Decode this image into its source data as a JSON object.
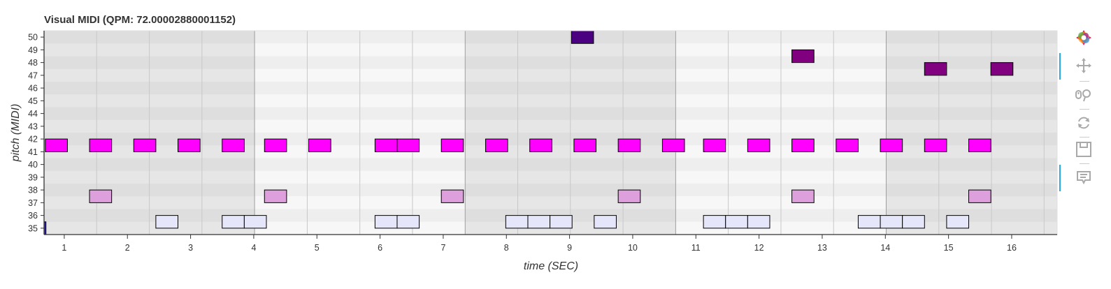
{
  "chart_data": {
    "type": "piano-roll",
    "title": "Visual MIDI (QPM: 72.00002880001152)",
    "xlabel": "time (SEC)",
    "ylabel": "pitch (MIDI)",
    "xlim": [
      0.68,
      16.72
    ],
    "ylim": [
      34.5,
      50.5
    ],
    "x_ticks": [
      1,
      2,
      3,
      4,
      5,
      6,
      7,
      8,
      9,
      10,
      11,
      12,
      13,
      14,
      15,
      16
    ],
    "y_ticks": [
      35,
      36,
      37,
      38,
      39,
      40,
      41,
      42,
      43,
      44,
      45,
      46,
      47,
      48,
      49,
      50
    ],
    "beat_lines": [
      0.68,
      1.513,
      2.347,
      3.18,
      4.013,
      4.847,
      5.68,
      6.513,
      7.347,
      8.18,
      9.013,
      9.847,
      10.68,
      11.513,
      12.347,
      13.18,
      14.013,
      14.847,
      15.68,
      16.513
    ],
    "shaded_bars": [
      [
        0.68,
        4.013
      ],
      [
        7.347,
        10.68
      ],
      [
        14.013,
        16.72
      ]
    ],
    "grid": true,
    "note_height": 1,
    "notes": [
      {
        "start": 0.68,
        "end": 0.71,
        "pitch": 35,
        "color": "#3a2aa0"
      },
      {
        "start": 0.7,
        "end": 1.05,
        "pitch": 41.5,
        "color": "#ff00ff"
      },
      {
        "start": 1.4,
        "end": 1.75,
        "pitch": 41.5,
        "color": "#ff00ff"
      },
      {
        "start": 2.1,
        "end": 2.45,
        "pitch": 41.5,
        "color": "#ff00ff"
      },
      {
        "start": 2.8,
        "end": 3.15,
        "pitch": 41.5,
        "color": "#ff00ff"
      },
      {
        "start": 3.5,
        "end": 3.85,
        "pitch": 41.5,
        "color": "#ff00ff"
      },
      {
        "start": 4.17,
        "end": 4.52,
        "pitch": 41.5,
        "color": "#ff00ff"
      },
      {
        "start": 4.87,
        "end": 5.22,
        "pitch": 41.5,
        "color": "#ff00ff"
      },
      {
        "start": 5.92,
        "end": 6.27,
        "pitch": 41.5,
        "color": "#ff00ff"
      },
      {
        "start": 6.27,
        "end": 6.62,
        "pitch": 41.5,
        "color": "#ff00ff"
      },
      {
        "start": 6.97,
        "end": 7.32,
        "pitch": 41.5,
        "color": "#ff00ff"
      },
      {
        "start": 7.67,
        "end": 8.02,
        "pitch": 41.5,
        "color": "#ff00ff"
      },
      {
        "start": 8.37,
        "end": 8.72,
        "pitch": 41.5,
        "color": "#ff00ff"
      },
      {
        "start": 9.07,
        "end": 9.42,
        "pitch": 41.5,
        "color": "#ff00ff"
      },
      {
        "start": 9.77,
        "end": 10.12,
        "pitch": 41.5,
        "color": "#ff00ff"
      },
      {
        "start": 10.47,
        "end": 10.82,
        "pitch": 41.5,
        "color": "#ff00ff"
      },
      {
        "start": 11.12,
        "end": 11.47,
        "pitch": 41.5,
        "color": "#ff00ff"
      },
      {
        "start": 11.82,
        "end": 12.17,
        "pitch": 41.5,
        "color": "#ff00ff"
      },
      {
        "start": 12.52,
        "end": 12.87,
        "pitch": 41.5,
        "color": "#ff00ff"
      },
      {
        "start": 13.22,
        "end": 13.57,
        "pitch": 41.5,
        "color": "#ff00ff"
      },
      {
        "start": 13.92,
        "end": 14.27,
        "pitch": 41.5,
        "color": "#ff00ff"
      },
      {
        "start": 14.62,
        "end": 14.97,
        "pitch": 41.5,
        "color": "#ff00ff"
      },
      {
        "start": 15.32,
        "end": 15.67,
        "pitch": 41.5,
        "color": "#ff00ff"
      },
      {
        "start": 1.4,
        "end": 1.75,
        "pitch": 37.5,
        "color": "#dda0dd"
      },
      {
        "start": 4.17,
        "end": 4.52,
        "pitch": 37.5,
        "color": "#dda0dd"
      },
      {
        "start": 6.97,
        "end": 7.32,
        "pitch": 37.5,
        "color": "#dda0dd"
      },
      {
        "start": 9.77,
        "end": 10.12,
        "pitch": 37.5,
        "color": "#dda0dd"
      },
      {
        "start": 12.52,
        "end": 12.87,
        "pitch": 37.5,
        "color": "#dda0dd"
      },
      {
        "start": 15.32,
        "end": 15.67,
        "pitch": 37.5,
        "color": "#dda0dd"
      },
      {
        "start": 2.45,
        "end": 2.8,
        "pitch": 35.5,
        "color": "#e6e6fa"
      },
      {
        "start": 3.5,
        "end": 3.85,
        "pitch": 35.5,
        "color": "#e6e6fa"
      },
      {
        "start": 3.85,
        "end": 4.2,
        "pitch": 35.5,
        "color": "#e6e6fa"
      },
      {
        "start": 5.92,
        "end": 6.27,
        "pitch": 35.5,
        "color": "#e6e6fa"
      },
      {
        "start": 6.27,
        "end": 6.62,
        "pitch": 35.5,
        "color": "#e6e6fa"
      },
      {
        "start": 7.99,
        "end": 8.34,
        "pitch": 35.5,
        "color": "#e6e6fa"
      },
      {
        "start": 8.34,
        "end": 8.69,
        "pitch": 35.5,
        "color": "#e6e6fa"
      },
      {
        "start": 8.69,
        "end": 9.04,
        "pitch": 35.5,
        "color": "#e6e6fa"
      },
      {
        "start": 9.39,
        "end": 9.74,
        "pitch": 35.5,
        "color": "#e6e6fa"
      },
      {
        "start": 11.12,
        "end": 11.47,
        "pitch": 35.5,
        "color": "#e6e6fa"
      },
      {
        "start": 11.47,
        "end": 11.82,
        "pitch": 35.5,
        "color": "#e6e6fa"
      },
      {
        "start": 11.82,
        "end": 12.17,
        "pitch": 35.5,
        "color": "#e6e6fa"
      },
      {
        "start": 13.57,
        "end": 13.92,
        "pitch": 35.5,
        "color": "#e6e6fa"
      },
      {
        "start": 13.92,
        "end": 14.27,
        "pitch": 35.5,
        "color": "#e6e6fa"
      },
      {
        "start": 14.27,
        "end": 14.62,
        "pitch": 35.5,
        "color": "#e6e6fa"
      },
      {
        "start": 14.97,
        "end": 15.32,
        "pitch": 35.5,
        "color": "#e6e6fa"
      },
      {
        "start": 12.52,
        "end": 12.87,
        "pitch": 48.5,
        "color": "#800080"
      },
      {
        "start": 14.62,
        "end": 14.97,
        "pitch": 47.5,
        "color": "#800080"
      },
      {
        "start": 15.67,
        "end": 16.02,
        "pitch": 47.5,
        "color": "#800080"
      },
      {
        "start": 9.03,
        "end": 9.38,
        "pitch": 50,
        "color": "#4b0082"
      }
    ]
  },
  "toolbar": {
    "tools": [
      {
        "name": "bokeh-logo",
        "active": false
      },
      {
        "name": "pan-tool",
        "active": true
      },
      {
        "name": "wheel-zoom-tool",
        "active": false
      },
      {
        "name": "reset-tool",
        "active": false
      },
      {
        "name": "save-tool",
        "active": false
      },
      {
        "name": "hover-tool",
        "active": true
      }
    ]
  },
  "colors": {
    "stripe_light": "#f7f7f7",
    "stripe_dark": "#eeeeee",
    "shade": "#000000",
    "grid_line": "#c8c8c8",
    "axis": "#333333",
    "accent": "#26aae1"
  }
}
